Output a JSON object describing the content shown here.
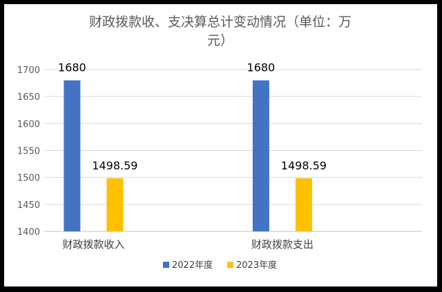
{
  "chart_data": {
    "type": "bar",
    "title_lines": [
      "财政拨款收、支决算总计变动情况（单位：万",
      "元）"
    ],
    "categories": [
      "财政拨款收入",
      "财政拨款支出"
    ],
    "series": [
      {
        "name": "2022年度",
        "color": "#4472C4",
        "values": [
          1680,
          1680
        ],
        "labels": [
          "1680",
          "1680"
        ]
      },
      {
        "name": "2023年度",
        "color": "#FFC000",
        "values": [
          1498.59,
          1498.59
        ],
        "labels": [
          "1498.59",
          "1498.59"
        ]
      }
    ],
    "ylim": [
      1400,
      1700
    ],
    "yticks": [
      1400,
      1450,
      1500,
      1550,
      1600,
      1650,
      1700
    ],
    "grid": true,
    "legend_position": "bottom"
  }
}
